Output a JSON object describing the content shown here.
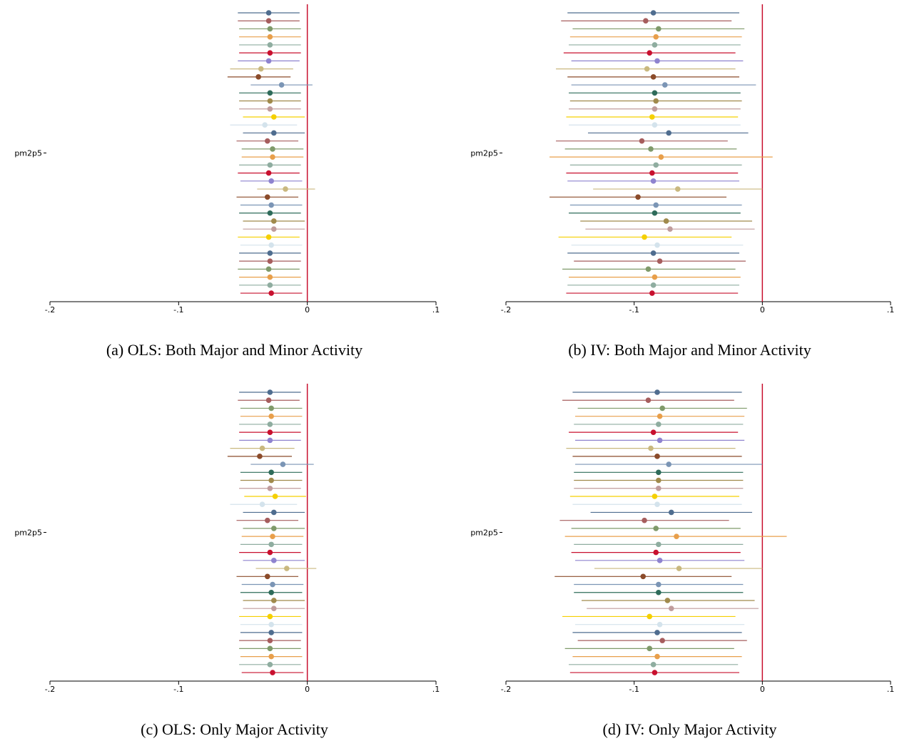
{
  "chart_data": [
    {
      "type": "coefplot",
      "caption": "(a) OLS: Both Major and Minor Activity",
      "categories": [
        "pm2p5"
      ],
      "estimates": [
        -0.03,
        -0.03,
        -0.029,
        -0.029,
        -0.029,
        -0.029,
        -0.03,
        -0.036,
        -0.038,
        -0.02,
        -0.029,
        -0.029,
        -0.029,
        -0.026,
        -0.033,
        -0.026,
        -0.031,
        -0.027,
        -0.027,
        -0.029,
        -0.03,
        -0.028,
        -0.017,
        -0.031,
        -0.028,
        -0.029,
        -0.026,
        -0.026,
        -0.03,
        -0.028,
        -0.029,
        -0.029,
        -0.03,
        -0.029,
        -0.029,
        -0.028
      ],
      "lower": [
        -0.054,
        -0.054,
        -0.053,
        -0.053,
        -0.053,
        -0.053,
        -0.054,
        -0.06,
        -0.062,
        -0.044,
        -0.053,
        -0.053,
        -0.053,
        -0.05,
        -0.06,
        -0.05,
        -0.055,
        -0.051,
        -0.051,
        -0.053,
        -0.054,
        -0.052,
        -0.039,
        -0.055,
        -0.052,
        -0.053,
        -0.05,
        -0.05,
        -0.054,
        -0.052,
        -0.053,
        -0.053,
        -0.054,
        -0.053,
        -0.053,
        -0.052
      ],
      "upper": [
        -0.006,
        -0.006,
        -0.005,
        -0.005,
        -0.005,
        -0.005,
        -0.006,
        -0.011,
        -0.013,
        0.004,
        -0.005,
        -0.005,
        -0.005,
        -0.002,
        -0.008,
        -0.002,
        -0.007,
        -0.003,
        -0.003,
        -0.005,
        -0.006,
        -0.004,
        0.006,
        -0.007,
        -0.004,
        -0.005,
        -0.002,
        -0.002,
        -0.006,
        -0.004,
        -0.005,
        -0.005,
        -0.006,
        -0.005,
        -0.005,
        -0.004
      ],
      "colors": [
        "#4f6d8f",
        "#a65d5d",
        "#7f9a6a",
        "#e89f4b",
        "#8fada0",
        "#c8102e",
        "#8e83cf",
        "#c9b87f",
        "#8b4b2a",
        "#7b95b5",
        "#2e6b5a",
        "#a08a4c",
        "#c09c9c",
        "#f5d000",
        "#d4e3ec"
      ],
      "refline": 0,
      "refline_color": "#c8102e",
      "xlim": [
        -0.2,
        0.1
      ],
      "xticks": [
        {
          "value": -0.2,
          "label": "-.2"
        },
        {
          "value": -0.1,
          "label": "-.1"
        },
        0,
        {
          "value": 0.1,
          "label": ".1"
        }
      ]
    },
    {
      "type": "coefplot",
      "caption": "(b) IV: Both Major and Minor Activity",
      "categories": [
        "pm2p5"
      ],
      "estimates": [
        -0.085,
        -0.091,
        -0.081,
        -0.083,
        -0.084,
        -0.088,
        -0.082,
        -0.09,
        -0.085,
        -0.076,
        -0.084,
        -0.083,
        -0.084,
        -0.086,
        -0.084,
        -0.073,
        -0.094,
        -0.087,
        -0.079,
        -0.083,
        -0.086,
        -0.085,
        -0.066,
        -0.097,
        -0.083,
        -0.084,
        -0.075,
        -0.072,
        -0.092,
        -0.082,
        -0.085,
        -0.08,
        -0.089,
        -0.084,
        -0.085,
        -0.086
      ],
      "lower": [
        -0.152,
        -0.157,
        -0.148,
        -0.15,
        -0.151,
        -0.155,
        -0.149,
        -0.161,
        -0.152,
        -0.149,
        -0.151,
        -0.15,
        -0.151,
        -0.153,
        -0.151,
        -0.136,
        -0.161,
        -0.154,
        -0.166,
        -0.15,
        -0.153,
        -0.152,
        -0.132,
        -0.166,
        -0.15,
        -0.151,
        -0.142,
        -0.138,
        -0.159,
        -0.149,
        -0.152,
        -0.147,
        -0.156,
        -0.151,
        -0.152,
        -0.153
      ],
      "upper": [
        -0.018,
        -0.024,
        -0.014,
        -0.016,
        -0.017,
        -0.021,
        -0.015,
        -0.021,
        -0.018,
        -0.005,
        -0.017,
        -0.016,
        -0.017,
        -0.019,
        -0.017,
        -0.011,
        -0.027,
        -0.02,
        0.008,
        -0.016,
        -0.019,
        -0.018,
        0.0,
        -0.028,
        -0.016,
        -0.017,
        -0.008,
        -0.006,
        -0.024,
        -0.015,
        -0.018,
        -0.013,
        -0.021,
        -0.017,
        -0.018,
        -0.019
      ],
      "colors": [
        "#4f6d8f",
        "#a65d5d",
        "#7f9a6a",
        "#e89f4b",
        "#8fada0",
        "#c8102e",
        "#8e83cf",
        "#c9b87f",
        "#8b4b2a",
        "#7b95b5",
        "#2e6b5a",
        "#a08a4c",
        "#c09c9c",
        "#f5d000",
        "#d4e3ec"
      ],
      "refline": 0,
      "refline_color": "#c8102e",
      "xlim": [
        -0.2,
        0.1
      ],
      "xticks": [
        {
          "value": -0.2,
          "label": "-.2"
        },
        {
          "value": -0.1,
          "label": "-.1"
        },
        0,
        {
          "value": 0.1,
          "label": ".1"
        }
      ]
    },
    {
      "type": "coefplot",
      "caption": "(c) OLS: Only Major Activity",
      "categories": [
        "pm2p5"
      ],
      "estimates": [
        -0.029,
        -0.03,
        -0.028,
        -0.028,
        -0.029,
        -0.029,
        -0.029,
        -0.035,
        -0.037,
        -0.019,
        -0.028,
        -0.028,
        -0.029,
        -0.025,
        -0.035,
        -0.026,
        -0.031,
        -0.026,
        -0.027,
        -0.028,
        -0.029,
        -0.026,
        -0.016,
        -0.031,
        -0.027,
        -0.028,
        -0.026,
        -0.026,
        -0.029,
        -0.028,
        -0.028,
        -0.029,
        -0.029,
        -0.028,
        -0.029,
        -0.027
      ],
      "lower": [
        -0.053,
        -0.054,
        -0.052,
        -0.052,
        -0.053,
        -0.053,
        -0.053,
        -0.06,
        -0.062,
        -0.044,
        -0.052,
        -0.052,
        -0.053,
        -0.049,
        -0.06,
        -0.05,
        -0.055,
        -0.05,
        -0.051,
        -0.052,
        -0.053,
        -0.05,
        -0.04,
        -0.055,
        -0.051,
        -0.052,
        -0.05,
        -0.05,
        -0.053,
        -0.052,
        -0.052,
        -0.053,
        -0.053,
        -0.052,
        -0.053,
        -0.051
      ],
      "upper": [
        -0.005,
        -0.006,
        -0.004,
        -0.004,
        -0.005,
        -0.005,
        -0.005,
        -0.01,
        -0.012,
        0.005,
        -0.004,
        -0.004,
        -0.005,
        -0.001,
        -0.008,
        -0.002,
        -0.007,
        -0.002,
        -0.003,
        -0.004,
        -0.005,
        -0.002,
        0.007,
        -0.007,
        -0.003,
        -0.004,
        -0.002,
        -0.002,
        -0.005,
        -0.004,
        -0.004,
        -0.005,
        -0.005,
        -0.004,
        -0.005,
        -0.003
      ],
      "colors": [
        "#4f6d8f",
        "#a65d5d",
        "#7f9a6a",
        "#e89f4b",
        "#8fada0",
        "#c8102e",
        "#8e83cf",
        "#c9b87f",
        "#8b4b2a",
        "#7b95b5",
        "#2e6b5a",
        "#a08a4c",
        "#c09c9c",
        "#f5d000",
        "#d4e3ec"
      ],
      "refline": 0,
      "refline_color": "#c8102e",
      "xlim": [
        -0.2,
        0.1
      ],
      "xticks": [
        {
          "value": -0.2,
          "label": "-.2"
        },
        {
          "value": -0.1,
          "label": "-.1"
        },
        0,
        {
          "value": 0.1,
          "label": ".1"
        }
      ]
    },
    {
      "type": "coefplot",
      "caption": "(d) IV: Only Major Activity",
      "categories": [
        "pm2p5"
      ],
      "estimates": [
        -0.082,
        -0.089,
        -0.078,
        -0.08,
        -0.081,
        -0.085,
        -0.08,
        -0.087,
        -0.082,
        -0.073,
        -0.081,
        -0.081,
        -0.081,
        -0.084,
        -0.082,
        -0.071,
        -0.092,
        -0.083,
        -0.067,
        -0.081,
        -0.083,
        -0.08,
        -0.065,
        -0.093,
        -0.081,
        -0.081,
        -0.074,
        -0.071,
        -0.088,
        -0.08,
        -0.082,
        -0.078,
        -0.088,
        -0.082,
        -0.085,
        -0.084
      ],
      "lower": [
        -0.148,
        -0.156,
        -0.144,
        -0.146,
        -0.147,
        -0.151,
        -0.146,
        -0.153,
        -0.148,
        -0.146,
        -0.147,
        -0.147,
        -0.147,
        -0.15,
        -0.148,
        -0.134,
        -0.158,
        -0.149,
        -0.154,
        -0.147,
        -0.149,
        -0.146,
        -0.131,
        -0.162,
        -0.147,
        -0.147,
        -0.141,
        -0.137,
        -0.156,
        -0.146,
        -0.148,
        -0.144,
        -0.154,
        -0.148,
        -0.151,
        -0.15
      ],
      "upper": [
        -0.016,
        -0.022,
        -0.012,
        -0.014,
        -0.015,
        -0.019,
        -0.014,
        -0.021,
        -0.016,
        0.0,
        -0.015,
        -0.015,
        -0.015,
        -0.018,
        -0.016,
        -0.008,
        -0.026,
        -0.017,
        0.019,
        -0.015,
        -0.017,
        -0.014,
        0.0,
        -0.024,
        -0.015,
        -0.015,
        -0.006,
        -0.003,
        -0.021,
        -0.014,
        -0.016,
        -0.012,
        -0.022,
        -0.016,
        -0.019,
        -0.018
      ],
      "colors": [
        "#4f6d8f",
        "#a65d5d",
        "#7f9a6a",
        "#e89f4b",
        "#8fada0",
        "#c8102e",
        "#8e83cf",
        "#c9b87f",
        "#8b4b2a",
        "#7b95b5",
        "#2e6b5a",
        "#a08a4c",
        "#c09c9c",
        "#f5d000",
        "#d4e3ec"
      ],
      "refline": 0,
      "refline_color": "#c8102e",
      "xlim": [
        -0.2,
        0.1
      ],
      "xticks": [
        {
          "value": -0.2,
          "label": "-.2"
        },
        {
          "value": -0.1,
          "label": "-.1"
        },
        0,
        {
          "value": 0.1,
          "label": ".1"
        }
      ]
    }
  ]
}
